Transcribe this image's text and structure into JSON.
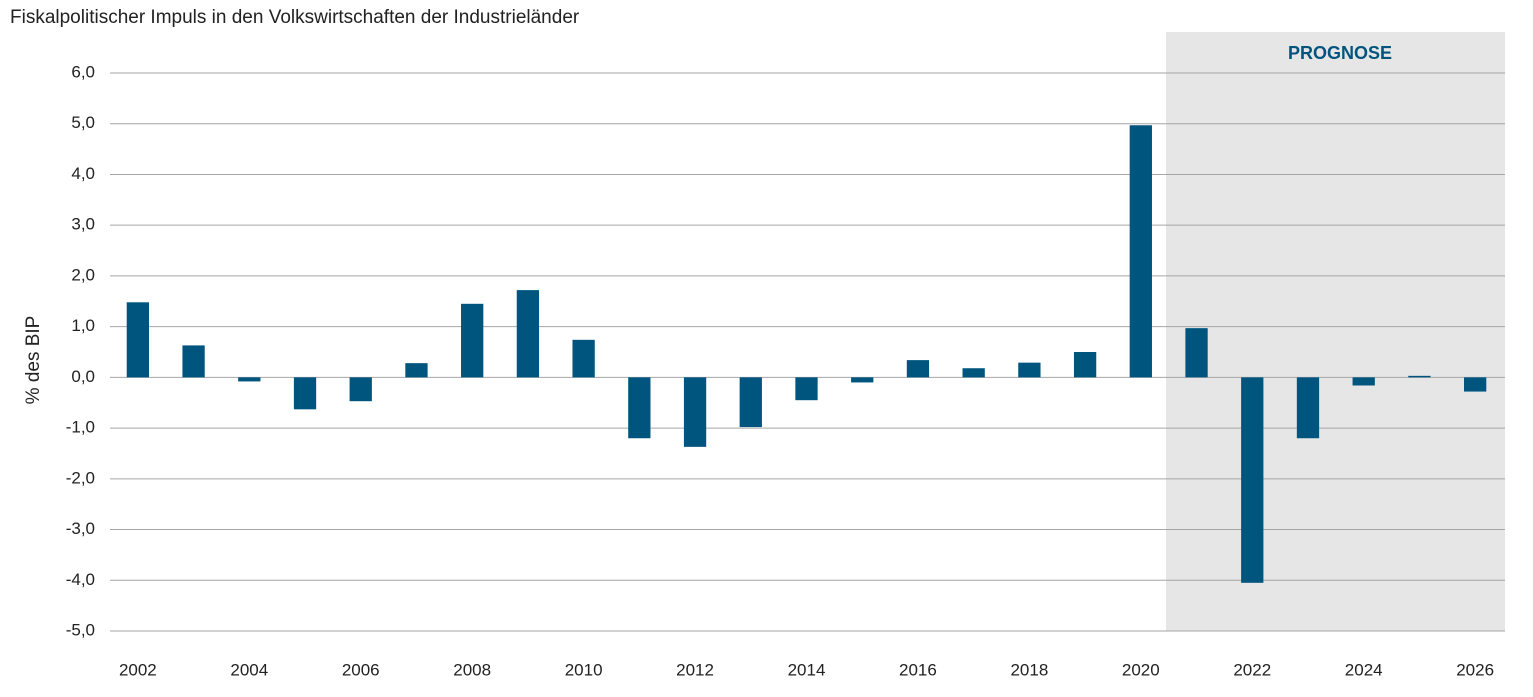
{
  "chart_data": {
    "type": "bar",
    "title": "Fiskalpolitischer Impuls in den Volkswirtschaften der Industrieländer",
    "ylabel": "% des BIP",
    "annotation": "PROGNOSE",
    "categories": [
      "2002",
      null,
      "2004",
      null,
      "2006",
      null,
      "2008",
      null,
      "2010",
      null,
      "2012",
      null,
      "2014",
      null,
      "2016",
      null,
      "2018",
      null,
      "2020",
      null,
      "2022",
      null,
      "2024",
      null,
      "2026"
    ],
    "values": [
      1.48,
      0.63,
      -0.08,
      -0.63,
      -0.47,
      0.28,
      1.45,
      1.72,
      0.74,
      -1.2,
      -1.37,
      -0.98,
      -0.45,
      -0.1,
      0.34,
      0.18,
      0.29,
      0.5,
      4.97,
      0.97,
      -4.05,
      -1.2,
      -0.16,
      0.03,
      -0.28
    ],
    "color": "#00557f",
    "ylim": [
      -5,
      6
    ],
    "yticks": [
      {
        "value": -5,
        "label": "-5,0"
      },
      {
        "value": -4,
        "label": "-4,0"
      },
      {
        "value": -3,
        "label": "-3,0"
      },
      {
        "value": -2,
        "label": "-2,0"
      },
      {
        "value": -1,
        "label": "-1,0"
      },
      {
        "value": 0,
        "label": "0,0"
      },
      {
        "value": 1,
        "label": "1,0"
      },
      {
        "value": 2,
        "label": "2,0"
      },
      {
        "value": 3,
        "label": "3,0"
      },
      {
        "value": 4,
        "label": "4,0"
      },
      {
        "value": 5,
        "label": "5,0"
      },
      {
        "value": 6,
        "label": "6,0"
      }
    ],
    "grid": true
  }
}
